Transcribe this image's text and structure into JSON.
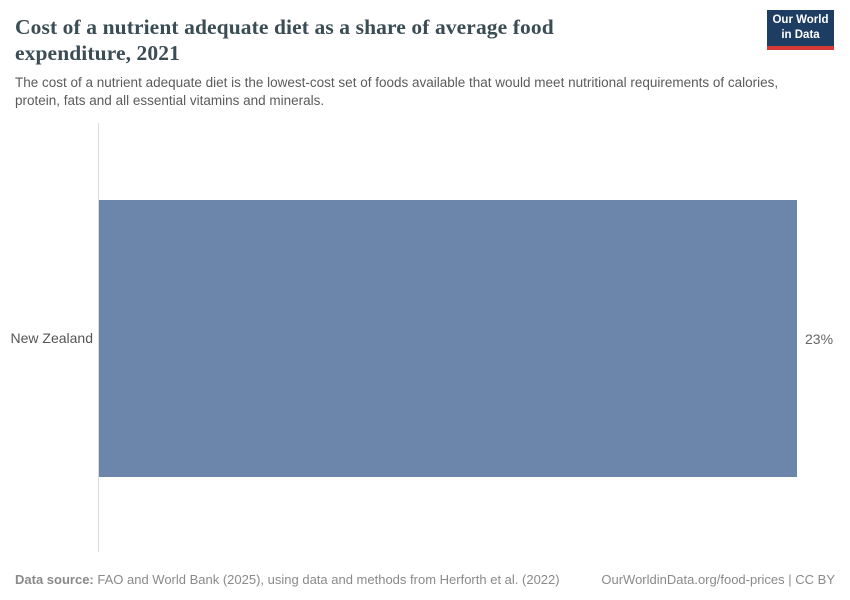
{
  "header": {
    "title": "Cost of a nutrient adequate diet as a share of average food expenditure, 2021",
    "logo": {
      "line1": "Our World",
      "line2": "in Data"
    }
  },
  "subtitle": "The cost of a nutrient adequate diet is the lowest-cost set of foods available that would meet nutritional requirements of calories, protein, fats and all essential vitamins and minerals.",
  "chart_data": {
    "type": "bar",
    "orientation": "horizontal",
    "title": "Cost of a nutrient adequate diet as a share of average food expenditure, 2021",
    "categories": [
      "New Zealand"
    ],
    "values": [
      23
    ],
    "value_labels": [
      "23%"
    ],
    "value_suffix": "%",
    "xlabel": "",
    "ylabel": "",
    "xlim": [
      0,
      23
    ],
    "grid": false,
    "legend": false,
    "bar_color": "#6c86ab"
  },
  "colors": {
    "bar": "#6c86ab",
    "title": "#3a4c54",
    "subtitle": "#5b5b5b",
    "axis_line": "#dcdcdc",
    "footer_text": "#8a8a8a",
    "logo_background": "#1d3d63",
    "logo_red_stripe": "#d73a35"
  },
  "footer": {
    "source_label": "Data source:",
    "source_text": " FAO and World Bank (2025), using data and methods from Herforth et al. (2022)",
    "link": "OurWorldinData.org/food-prices | CC BY"
  }
}
